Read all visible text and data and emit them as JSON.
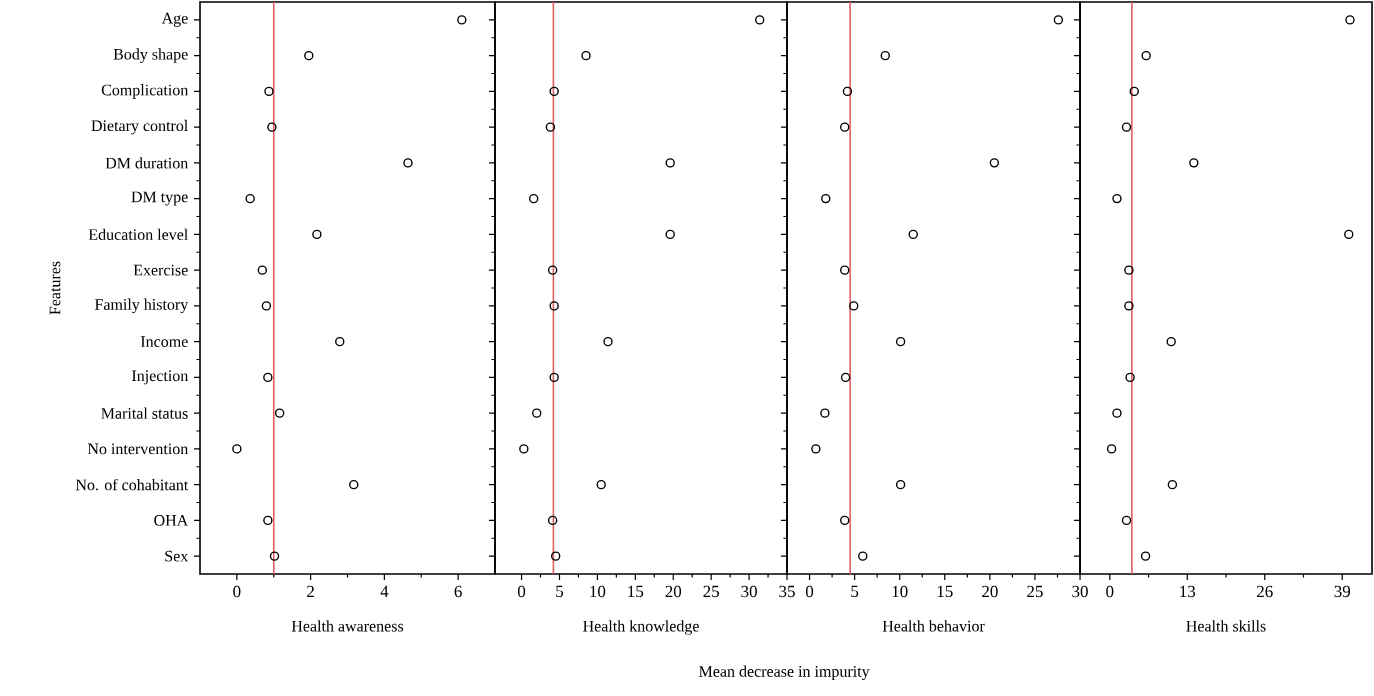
{
  "chart_data": [
    {
      "type": "scatter",
      "orientation": "horizontal",
      "xlabel": "Health awareness",
      "ylabel": "Features",
      "annotations": [
        "Mean decrease in impurity"
      ],
      "marker": "circle",
      "color": "#000000",
      "categories": [
        "Age",
        "Body shape",
        "Complication",
        "Dietary control",
        "DM duration",
        "DM type",
        "Education level",
        "Exercise",
        "Family history",
        "Income",
        "Injection",
        "Marital status",
        "No intervention",
        "No. of cohabitant",
        "OHA",
        "Sex"
      ],
      "values": [
        6.1,
        1.95,
        0.87,
        0.95,
        4.64,
        0.36,
        2.17,
        0.69,
        0.8,
        2.79,
        0.84,
        1.16,
        0,
        3.17,
        0.84,
        1.02
      ],
      "xlim": [
        -1,
        7
      ],
      "xticks": [
        0,
        2,
        4,
        6
      ],
      "ref_lines": [
        {
          "axis": "x",
          "value": 1.0,
          "color": "#e06060"
        }
      ]
    },
    {
      "type": "scatter",
      "orientation": "horizontal",
      "xlabel": "Health knowledge",
      "marker": "circle",
      "color": "#000000",
      "tick_labels": "x",
      "values": [
        31.4,
        8.5,
        4.3,
        3.8,
        19.6,
        1.6,
        19.6,
        4.1,
        4.3,
        11.4,
        4.3,
        2.0,
        0.3,
        10.5,
        4.1,
        4.5
      ],
      "xlim": [
        -3.5,
        35
      ],
      "xticks": [
        0,
        5,
        10,
        15,
        20,
        25,
        30,
        35
      ],
      "ref_lines": [
        {
          "axis": "x",
          "value": 4.2,
          "color": "#e06060"
        }
      ]
    },
    {
      "type": "scatter",
      "orientation": "horizontal",
      "xlabel": "Health behavior",
      "marker": "circle",
      "color": "#000000",
      "tick_labels": "x",
      "values": [
        27.6,
        8.4,
        4.2,
        3.9,
        20.5,
        1.8,
        11.5,
        3.9,
        4.9,
        10.1,
        4.0,
        1.7,
        0.7,
        10.1,
        3.9,
        5.9
      ],
      "xlim": [
        -2.5,
        30
      ],
      "xticks": [
        0,
        5,
        10,
        15,
        20,
        25,
        30
      ],
      "ref_lines": [
        {
          "axis": "x",
          "value": 4.5,
          "color": "#e06060"
        }
      ]
    },
    {
      "type": "scatter",
      "orientation": "horizontal",
      "xlabel": "Health skills",
      "marker": "circle",
      "color": "#000000",
      "tick_labels": "x",
      "values": [
        40.3,
        6.1,
        4.1,
        2.8,
        14.1,
        1.2,
        40.1,
        3.2,
        3.2,
        10.3,
        3.4,
        1.2,
        0.3,
        10.5,
        2.8,
        6.0
      ],
      "xlim": [
        -5,
        44
      ],
      "xticks": [
        0,
        13,
        26,
        39
      ],
      "ref_lines": [
        {
          "axis": "x",
          "value": 3.7,
          "color": "#e06060"
        }
      ]
    }
  ]
}
